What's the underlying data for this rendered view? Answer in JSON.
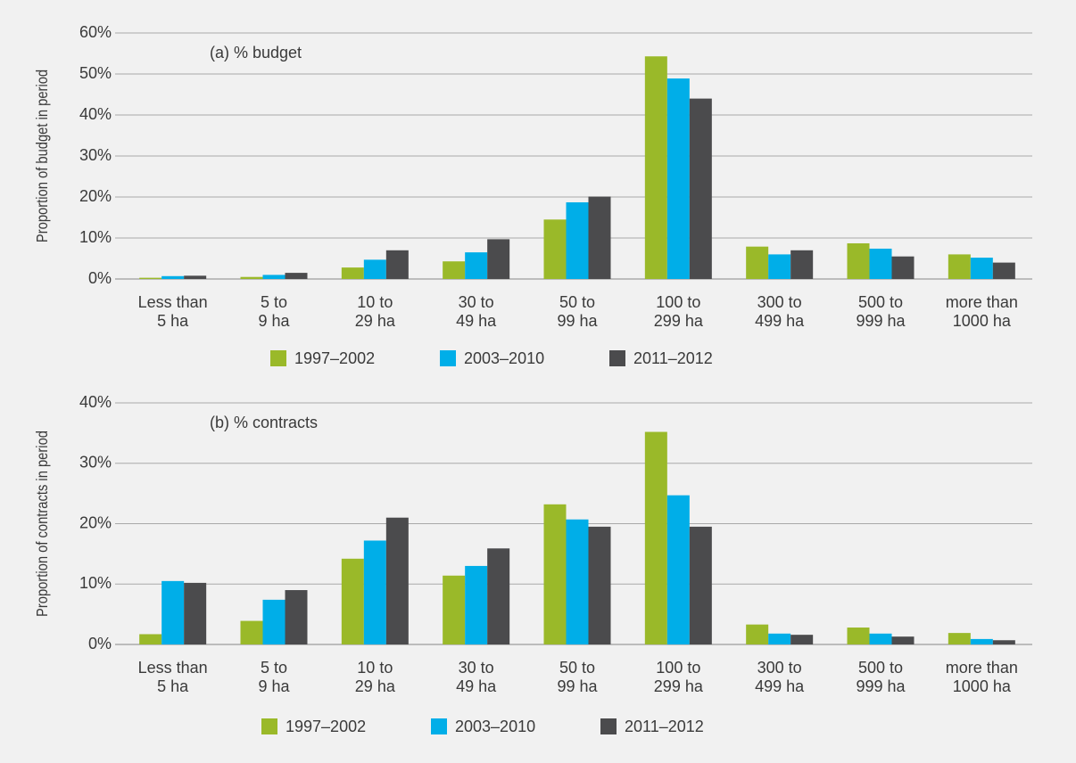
{
  "chart_data": [
    {
      "type": "bar",
      "annotation": "(a) % budget",
      "ylabel": "Proportion of budget in period",
      "categories": [
        "Less than\n5 ha",
        "5 to\n9 ha",
        "10 to\n29 ha",
        "30 to\n49 ha",
        "50 to\n99 ha",
        "100 to\n299 ha",
        "300 to\n499 ha",
        "500 to\n999 ha",
        "more than\n1000 ha"
      ],
      "series": [
        {
          "name": "1997–2002",
          "color": "#9ab929",
          "values": [
            0.3,
            0.5,
            2.8,
            4.3,
            14.5,
            54.3,
            7.9,
            8.7,
            6.0
          ]
        },
        {
          "name": "2003–2010",
          "color": "#00aee8",
          "values": [
            0.7,
            1.0,
            4.7,
            6.5,
            18.7,
            48.9,
            6.0,
            7.4,
            5.2
          ]
        },
        {
          "name": "2011–2012",
          "color": "#4b4b4d",
          "values": [
            0.8,
            1.5,
            7.0,
            9.7,
            20.1,
            44.0,
            7.0,
            5.5,
            4.0
          ]
        }
      ],
      "ylim": [
        0,
        60
      ],
      "yticks": [
        {
          "value": 0,
          "label": "0%"
        },
        {
          "value": 10,
          "label": "10%"
        },
        {
          "value": 20,
          "label": "20%"
        },
        {
          "value": 30,
          "label": "30%"
        },
        {
          "value": 40,
          "label": "40%"
        },
        {
          "value": 50,
          "label": "50%"
        },
        {
          "value": 60,
          "label": "60%"
        }
      ],
      "grid": true,
      "legend": "bottom"
    },
    {
      "type": "bar",
      "annotation": "(b) % contracts",
      "ylabel": "Proportion of contracts in period",
      "categories": [
        "Less than\n5 ha",
        "5 to\n9 ha",
        "10 to\n29 ha",
        "30 to\n49 ha",
        "50 to\n99 ha",
        "100 to\n299 ha",
        "300 to\n499 ha",
        "500 to\n999 ha",
        "more than\n1000 ha"
      ],
      "series": [
        {
          "name": "1997–2002",
          "color": "#9ab929",
          "values": [
            1.7,
            3.9,
            14.2,
            11.4,
            23.2,
            35.2,
            3.3,
            2.8,
            1.9
          ]
        },
        {
          "name": "2003–2010",
          "color": "#00aee8",
          "values": [
            10.5,
            7.4,
            17.2,
            13.0,
            20.7,
            24.7,
            1.8,
            1.8,
            0.9
          ]
        },
        {
          "name": "2011–2012",
          "color": "#4b4b4d",
          "values": [
            10.2,
            9.0,
            21.0,
            15.9,
            19.5,
            19.5,
            1.6,
            1.3,
            0.7
          ]
        }
      ],
      "ylim": [
        0,
        40
      ],
      "yticks": [
        {
          "value": 0,
          "label": "0%"
        },
        {
          "value": 10,
          "label": "10%"
        },
        {
          "value": 20,
          "label": "20%"
        },
        {
          "value": 30,
          "label": "30%"
        },
        {
          "value": 40,
          "label": "40%"
        }
      ],
      "grid": true,
      "legend": "bottom"
    }
  ]
}
